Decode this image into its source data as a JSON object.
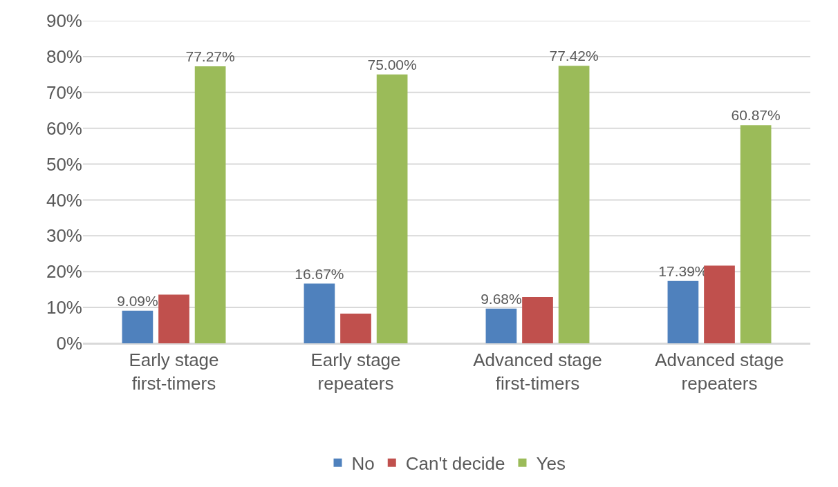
{
  "chart_data": {
    "type": "bar",
    "categories": [
      "Early stage first-timers",
      "Early stage repeaters",
      "Advanced stage first-timers",
      "Advanced stage repeaters"
    ],
    "series": [
      {
        "name": "No",
        "color": "#4f81bd",
        "values": [
          9.09,
          16.67,
          9.68,
          17.39
        ],
        "value_labels": [
          "9.09%",
          "16.67%",
          "9.68%",
          "17.39%"
        ]
      },
      {
        "name": "Can't decide",
        "color": "#c0504d",
        "values": [
          13.6,
          8.3,
          12.9,
          21.7
        ]
      },
      {
        "name": "Yes",
        "color": "#9bbb59",
        "values": [
          77.27,
          75.0,
          77.42,
          60.87
        ],
        "value_labels": [
          "77.27%",
          "75.00%",
          "77.42%",
          "60.87%"
        ]
      }
    ],
    "ylim": [
      0,
      90
    ],
    "yticks": [
      {
        "value": 0,
        "label": "0%"
      },
      {
        "value": 10,
        "label": "10%"
      },
      {
        "value": 20,
        "label": "20%"
      },
      {
        "value": 30,
        "label": "30%"
      },
      {
        "value": 40,
        "label": "40%"
      },
      {
        "value": 50,
        "label": "50%"
      },
      {
        "value": 60,
        "label": "60%"
      },
      {
        "value": 70,
        "label": "70%"
      },
      {
        "value": 80,
        "label": "80%"
      },
      {
        "value": 90,
        "label": "90%"
      }
    ],
    "grid": "y",
    "legend": "bottom"
  }
}
